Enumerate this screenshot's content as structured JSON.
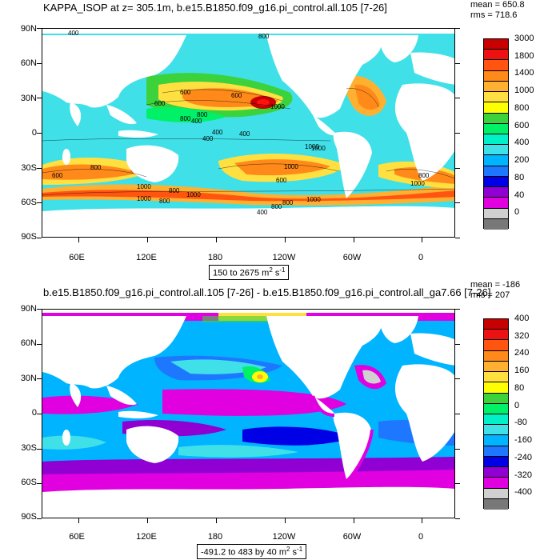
{
  "panels": [
    {
      "title": "KAPPA_ISOP at z= 305.1m, b.e15.B1850.f09_g16.pi_control.all.105 [7-26]",
      "mean": "mean = 650.8",
      "rms": "rms = 718.6",
      "range_label": "150 to 2675 m",
      "range_unit_sup": "2",
      "range_unit_tail": " s",
      "range_unit_sup2": "-1",
      "colorbar_labels": [
        "3000",
        "1800",
        "1400",
        "1000",
        "800",
        "600",
        "400",
        "200",
        "80",
        "40",
        "0"
      ],
      "colorbar_colors": [
        "#c80000",
        "#ee1111",
        "#ff5511",
        "#ff8a1a",
        "#ffb030",
        "#ffe040",
        "#ffff00",
        "#3cd23c",
        "#00f068",
        "#00f0c8",
        "#40e0e8",
        "#00b4ff",
        "#1e78ff",
        "#0000e6",
        "#9000d2",
        "#e000e0",
        "#d0d0d0",
        "#787878"
      ],
      "contour_labels": [
        "400",
        "800",
        "600",
        "600",
        "1000",
        "600",
        "800",
        "400",
        "800",
        "400",
        "1000",
        "1000",
        "600",
        "1000",
        "800",
        "1000",
        "800",
        "400",
        "400",
        "800",
        "800",
        "1000",
        "1000",
        "1000",
        "800",
        "800",
        "400",
        "600",
        "1000"
      ]
    },
    {
      "title": "b.e15.B1850.f09_g16.pi_control.all.105 [7-26] - b.e15.B1850.f09_g16.pi_control.all_ga7.66 [7-26]",
      "mean": "mean = -186",
      "rms": "rms = 207",
      "range_label": "-491.2 to 483 by 40 m",
      "range_unit_sup": "2",
      "range_unit_tail": " s",
      "range_unit_sup2": "-1",
      "colorbar_labels": [
        "400",
        "320",
        "240",
        "160",
        "80",
        "0",
        "-80",
        "-160",
        "-240",
        "-320",
        "-400"
      ],
      "colorbar_colors": [
        "#c80000",
        "#ee1111",
        "#ff5511",
        "#ff8a1a",
        "#ffb030",
        "#ffe040",
        "#ffff00",
        "#3cd23c",
        "#00f068",
        "#00f0c8",
        "#40e0e8",
        "#00b4ff",
        "#1e78ff",
        "#0000e6",
        "#9000d2",
        "#e000e0",
        "#d0d0d0",
        "#787878"
      ]
    }
  ],
  "axes": {
    "lat_labels": [
      "90N",
      "60N",
      "30N",
      "0",
      "30S",
      "60S",
      "90S"
    ],
    "lon_labels": [
      "60E",
      "120E",
      "180",
      "120W",
      "60W",
      "0"
    ]
  }
}
